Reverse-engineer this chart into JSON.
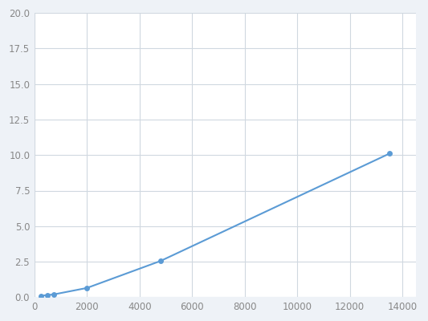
{
  "x": [
    250,
    500,
    750,
    2000,
    4800,
    13500
  ],
  "y": [
    0.1,
    0.15,
    0.2,
    0.65,
    2.55,
    10.1
  ],
  "line_color": "#5b9bd5",
  "marker_color": "#5b9bd5",
  "marker_size": 5,
  "xlim": [
    0,
    14500
  ],
  "ylim": [
    0.0,
    20.0
  ],
  "xticks": [
    0,
    2000,
    4000,
    6000,
    8000,
    10000,
    12000,
    14000
  ],
  "yticks": [
    0.0,
    2.5,
    5.0,
    7.5,
    10.0,
    12.5,
    15.0,
    17.5,
    20.0
  ],
  "grid_color": "#d0d8e0",
  "plot_background": "#ffffff",
  "figure_background": "#eef2f7"
}
